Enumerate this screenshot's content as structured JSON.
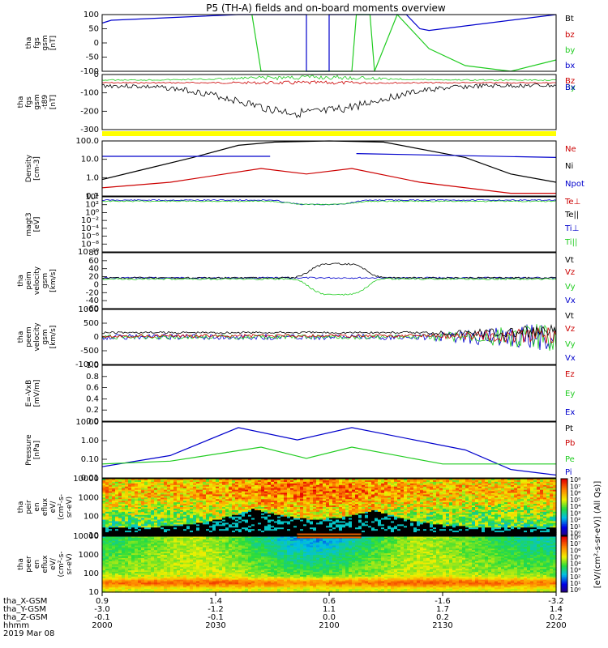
{
  "title": "P5 (TH-A) fields and on-board moments overview",
  "colors": {
    "black": "#000000",
    "red": "#cc0000",
    "green": "#22cc22",
    "blue": "#0000cc",
    "yellow": "#ffff00"
  },
  "panels": [
    {
      "id": "p1",
      "ylabel": [
        "tha",
        "fgs",
        "gsm",
        "[nT]"
      ],
      "ticks": [
        "100",
        "50",
        "0",
        "-50",
        "-100"
      ],
      "legend": [
        {
          "text": "Bt",
          "color": "black"
        },
        {
          "text": "bz",
          "color": "red"
        },
        {
          "text": "by",
          "color": "green"
        },
        {
          "text": "bx",
          "color": "blue"
        }
      ]
    },
    {
      "id": "p2",
      "ylabel": [
        "tha",
        "fgs",
        "gsm",
        "-t89",
        "[nT]"
      ],
      "ticks": [
        "0",
        "-100",
        "-200",
        "-300"
      ],
      "legend": [
        {
          "text": "Bz",
          "color": "red"
        },
        {
          "text": "By",
          "color": "green"
        },
        {
          "text": "Bx",
          "color": "blue"
        }
      ]
    },
    {
      "id": "p3",
      "ylabel": [
        "Density",
        "[cm-3]"
      ],
      "ticks": [
        "100.0",
        "10.0",
        "1.0",
        "0.1"
      ],
      "legend": [
        {
          "text": "Ne",
          "color": "red"
        },
        {
          "text": "Ni",
          "color": "black"
        },
        {
          "text": "Npot",
          "color": "blue"
        }
      ]
    },
    {
      "id": "p4",
      "ylabel": [
        "magt3",
        "[eV]"
      ],
      "ticks": [
        "10⁴",
        "10²",
        "10⁰",
        "10⁻²",
        "10⁻⁴",
        "10⁻⁶",
        "10⁻⁸",
        "10⁻¹⁰"
      ],
      "legend": [
        {
          "text": "Te⊥",
          "color": "red"
        },
        {
          "text": "Te||",
          "color": "black"
        },
        {
          "text": "Ti⊥",
          "color": "blue"
        },
        {
          "text": "Ti||",
          "color": "green"
        }
      ]
    },
    {
      "id": "p5",
      "ylabel": [
        "tha",
        "peim",
        "velocity",
        "gsm",
        "[km/s]"
      ],
      "ticks": [
        "80",
        "60",
        "40",
        "20",
        "0",
        "-20",
        "-40",
        "-60"
      ],
      "legend": [
        {
          "text": "Vt",
          "color": "black"
        },
        {
          "text": "Vz",
          "color": "red"
        },
        {
          "text": "Vy",
          "color": "green"
        },
        {
          "text": "Vx",
          "color": "blue"
        }
      ]
    },
    {
      "id": "p6",
      "ylabel": [
        "tha",
        "peem",
        "velocity",
        "gsm",
        "[km/s]"
      ],
      "ticks": [
        "1000",
        "500",
        "0",
        "-500",
        "-1000"
      ],
      "legend": [
        {
          "text": "Vt",
          "color": "black"
        },
        {
          "text": "Vz",
          "color": "red"
        },
        {
          "text": "Vy",
          "color": "green"
        },
        {
          "text": "Vx",
          "color": "blue"
        }
      ]
    },
    {
      "id": "p7",
      "ylabel": [
        "E=-VxB",
        "[mV/m]"
      ],
      "ticks": [
        "1.0",
        "0.8",
        "0.6",
        "0.4",
        "0.2",
        "0.0"
      ],
      "legend": [
        {
          "text": "Ez",
          "color": "red"
        },
        {
          "text": "Ey",
          "color": "green"
        },
        {
          "text": "Ex",
          "color": "blue"
        }
      ]
    },
    {
      "id": "p8",
      "ylabel": [
        "Pressure",
        "[nPa]"
      ],
      "ticks": [
        "10.00",
        "1.00",
        "0.10",
        "0.01"
      ],
      "legend": [
        {
          "text": "Pt",
          "color": "black"
        },
        {
          "text": "Pb",
          "color": "red"
        },
        {
          "text": "Pe",
          "color": "green"
        },
        {
          "text": "Pi",
          "color": "blue"
        }
      ]
    },
    {
      "id": "p9",
      "ylabel": [
        "tha",
        "peir",
        "en",
        "eflux",
        "eV/",
        "(cm²-s-",
        "sr-eV)"
      ],
      "ticks": [
        "10000",
        "1000",
        "100",
        "10"
      ],
      "colorbar": [
        "10⁸",
        "10⁷",
        "10⁶",
        "10⁵",
        "10⁴",
        "10³",
        "10²",
        "10¹",
        "10⁰"
      ]
    },
    {
      "id": "p10",
      "ylabel": [
        "tha",
        "peer",
        "en",
        "eflux",
        "eV/",
        "(cm²-s-",
        "sr-eV)"
      ],
      "ticks": [
        "10000",
        "1000",
        "100",
        "10"
      ],
      "colorbar": [
        "10⁸",
        "10⁷",
        "10⁶",
        "10⁵",
        "10⁴",
        "10³",
        "10²",
        "10¹",
        "10⁰"
      ]
    }
  ],
  "colorbar_label": "[eV/(cm²-s-sr-eV)] (All Qs)]",
  "axis": {
    "row_labels": [
      "tha_X-GSM",
      "tha_Y-GSM",
      "tha_Z-GSM",
      "hhmm",
      "2019 Mar 08"
    ],
    "columns": [
      [
        "0.9",
        "-3.0",
        "-0.1",
        "2000"
      ],
      [
        "1.4",
        "-1.2",
        "-0.1",
        "2030"
      ],
      [
        "0.6",
        "1.1",
        "0.0",
        "2100"
      ],
      [
        "-1.6",
        "1.7",
        "0.2",
        "2130"
      ],
      [
        "-3.2",
        "1.4",
        "0.2",
        "2200"
      ]
    ]
  },
  "chart_data": {
    "type": "line",
    "title": "P5 (TH-A) fields and on-board moments overview",
    "time_range": [
      "2000",
      "2200"
    ],
    "date": "2019 Mar 08",
    "series_notes": "Multi-panel time-series overview; values estimated from axes",
    "density": {
      "time": [
        "2000",
        "2030",
        "2045",
        "2100",
        "2115",
        "2130",
        "2200"
      ],
      "Ni": [
        0.1,
        30,
        150,
        200,
        150,
        30,
        0.3
      ],
      "Ne": [
        0.1,
        1.0,
        2.5,
        1.5,
        2.5,
        0.5,
        0.1
      ],
      "Npot": [
        18,
        18,
        18,
        null,
        18,
        18,
        18
      ]
    },
    "pressure": {
      "time": [
        "2000",
        "2030",
        "2045",
        "2050",
        "2100",
        "2130",
        "2200"
      ],
      "Pi": [
        0.02,
        2.0,
        5.0,
        0.8,
        5.0,
        0.3,
        0.01
      ],
      "Pe": [
        0.03,
        0.1,
        0.2,
        0.04,
        0.2,
        0.04,
        0.03
      ]
    },
    "peim_velocity": {
      "time": [
        "2045",
        "2050",
        "2055",
        "2100"
      ],
      "Vt": [
        5,
        45,
        50,
        0
      ],
      "Vy": [
        -5,
        -35,
        -30,
        0
      ]
    }
  }
}
